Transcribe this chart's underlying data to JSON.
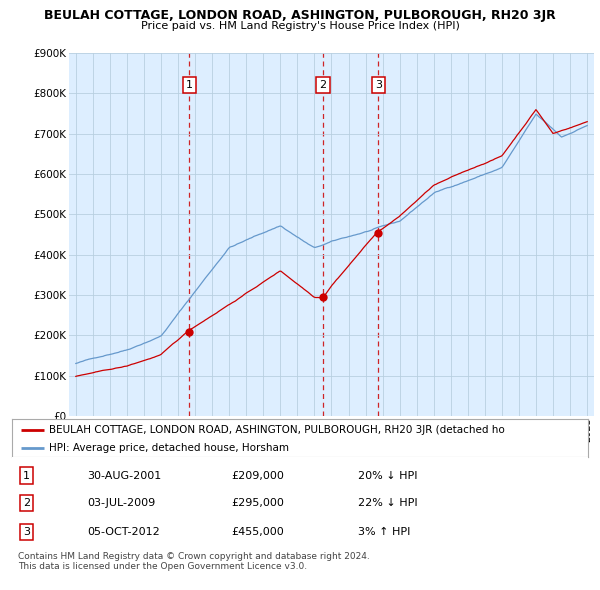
{
  "title": "BEULAH COTTAGE, LONDON ROAD, ASHINGTON, PULBOROUGH, RH20 3JR",
  "subtitle": "Price paid vs. HM Land Registry's House Price Index (HPI)",
  "ylim": [
    0,
    900000
  ],
  "yticks": [
    0,
    100000,
    200000,
    300000,
    400000,
    500000,
    600000,
    700000,
    800000,
    900000
  ],
  "ytick_labels": [
    "£0",
    "£100K",
    "£200K",
    "£300K",
    "£400K",
    "£500K",
    "£600K",
    "£700K",
    "£800K",
    "£900K"
  ],
  "chart_bg": "#ddeeff",
  "hpi_color": "#6699cc",
  "sale_color": "#cc0000",
  "vline_color": "#cc0000",
  "marker_color": "#cc0000",
  "sale_dates": [
    2001.66,
    2009.5,
    2012.75
  ],
  "sale_prices": [
    209000,
    295000,
    455000
  ],
  "sale_labels": [
    "1",
    "2",
    "3"
  ],
  "table_rows": [
    {
      "num": "1",
      "date": "30-AUG-2001",
      "price": "£209,000",
      "hpi": "20% ↓ HPI"
    },
    {
      "num": "2",
      "date": "03-JUL-2009",
      "price": "£295,000",
      "hpi": "22% ↓ HPI"
    },
    {
      "num": "3",
      "date": "05-OCT-2012",
      "price": "£455,000",
      "hpi": "3% ↑ HPI"
    }
  ],
  "legend_sale_label": "BEULAH COTTAGE, LONDON ROAD, ASHINGTON, PULBOROUGH, RH20 3JR (detached ho",
  "legend_hpi_label": "HPI: Average price, detached house, Horsham",
  "footer1": "Contains HM Land Registry data © Crown copyright and database right 2024.",
  "footer2": "This data is licensed under the Open Government Licence v3.0.",
  "background_color": "#ffffff"
}
